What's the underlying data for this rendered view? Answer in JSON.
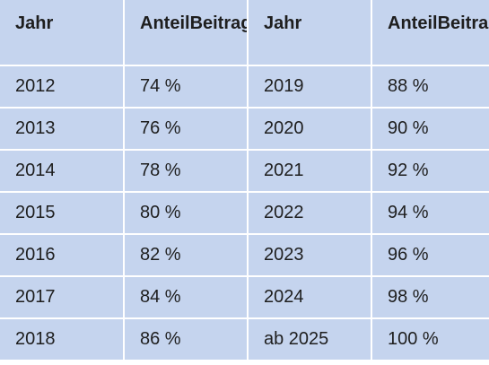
{
  "table": {
    "headers": [
      [
        "Jahr"
      ],
      [
        "Anteil",
        "Beitrag"
      ],
      [
        "Jahr"
      ],
      [
        "Anteil",
        "Beitrag"
      ]
    ],
    "rows": [
      [
        "2012",
        "74 %",
        "2019",
        "88 %"
      ],
      [
        "2013",
        "76 %",
        "2020",
        "90 %"
      ],
      [
        "2014",
        "78 %",
        "2021",
        "92 %"
      ],
      [
        "2015",
        "80 %",
        "2022",
        "94 %"
      ],
      [
        "2016",
        "82 %",
        "2023",
        "96 %"
      ],
      [
        "2017",
        "84 %",
        "2024",
        "98 %"
      ],
      [
        "2018",
        "86 %",
        "ab 2025",
        "100 %"
      ]
    ]
  }
}
